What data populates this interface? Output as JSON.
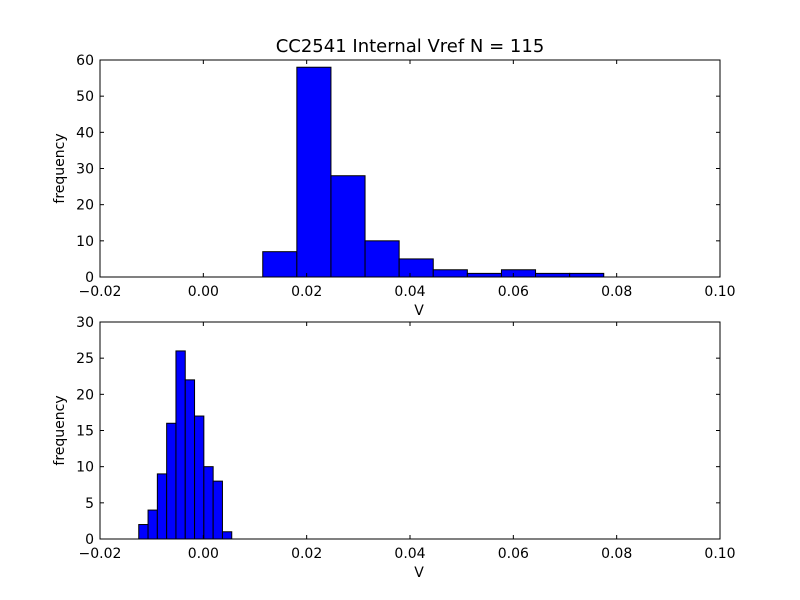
{
  "figure": {
    "title": "CC2541 Internal Vref N = 115",
    "bar_color": "#0000ff",
    "edge_color": "#000000"
  },
  "chart_data": [
    {
      "type": "bar",
      "title": "CC2541 Internal Vref N = 115",
      "xlabel": "V",
      "ylabel": "frequency",
      "xlim": [
        -0.02,
        0.1
      ],
      "ylim": [
        0,
        60
      ],
      "xticks": [
        -0.02,
        0.0,
        0.02,
        0.04,
        0.06,
        0.08,
        0.1
      ],
      "xtick_labels": [
        "−0.02",
        "0.00",
        "0.02",
        "0.04",
        "0.06",
        "0.08",
        "0.10"
      ],
      "yticks": [
        0,
        10,
        20,
        30,
        40,
        50,
        60
      ],
      "ytick_labels": [
        "0",
        "10",
        "20",
        "30",
        "40",
        "50",
        "60"
      ],
      "grid": false,
      "bins": [
        {
          "x0": 0.0115,
          "x1": 0.0181,
          "value": 7
        },
        {
          "x0": 0.0181,
          "x1": 0.0247,
          "value": 58
        },
        {
          "x0": 0.0247,
          "x1": 0.0313,
          "value": 28
        },
        {
          "x0": 0.0313,
          "x1": 0.0379,
          "value": 10
        },
        {
          "x0": 0.0379,
          "x1": 0.0445,
          "value": 5
        },
        {
          "x0": 0.0445,
          "x1": 0.0511,
          "value": 2
        },
        {
          "x0": 0.0511,
          "x1": 0.0577,
          "value": 1
        },
        {
          "x0": 0.0577,
          "x1": 0.0643,
          "value": 2
        },
        {
          "x0": 0.0643,
          "x1": 0.0709,
          "value": 1
        },
        {
          "x0": 0.0709,
          "x1": 0.0775,
          "value": 1
        }
      ]
    },
    {
      "type": "bar",
      "title": "",
      "xlabel": "V",
      "ylabel": "frequency",
      "xlim": [
        -0.02,
        0.1
      ],
      "ylim": [
        0,
        30
      ],
      "xticks": [
        -0.02,
        0.0,
        0.02,
        0.04,
        0.06,
        0.08,
        0.1
      ],
      "xtick_labels": [
        "−0.02",
        "0.00",
        "0.02",
        "0.04",
        "0.06",
        "0.08",
        "0.10"
      ],
      "yticks": [
        0,
        5,
        10,
        15,
        20,
        25,
        30
      ],
      "ytick_labels": [
        "0",
        "5",
        "10",
        "15",
        "20",
        "25",
        "30"
      ],
      "grid": false,
      "bins": [
        {
          "x0": -0.0125,
          "x1": -0.0107,
          "value": 2
        },
        {
          "x0": -0.0107,
          "x1": -0.0089,
          "value": 4
        },
        {
          "x0": -0.0089,
          "x1": -0.0071,
          "value": 9
        },
        {
          "x0": -0.0071,
          "x1": -0.0053,
          "value": 16
        },
        {
          "x0": -0.0053,
          "x1": -0.0035,
          "value": 26
        },
        {
          "x0": -0.0035,
          "x1": -0.0017,
          "value": 22
        },
        {
          "x0": -0.0017,
          "x1": 0.0001,
          "value": 17
        },
        {
          "x0": 0.0001,
          "x1": 0.0019,
          "value": 10
        },
        {
          "x0": 0.0019,
          "x1": 0.0037,
          "value": 8
        },
        {
          "x0": 0.0037,
          "x1": 0.0055,
          "value": 1
        }
      ]
    }
  ]
}
